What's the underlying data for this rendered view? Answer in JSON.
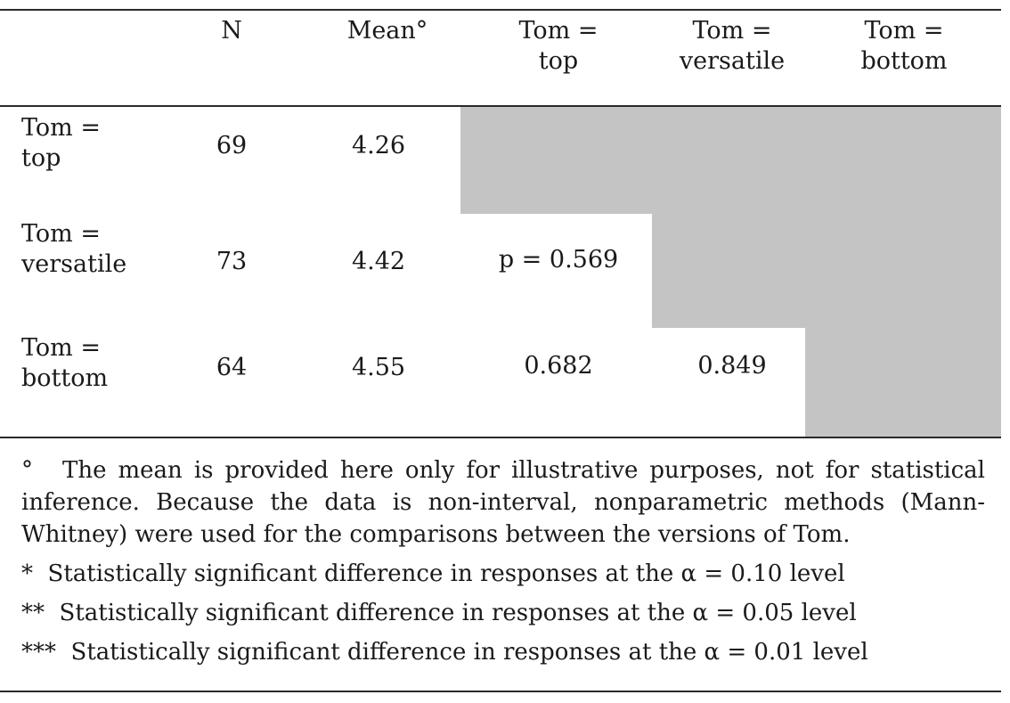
{
  "table": {
    "headers": {
      "n": "N",
      "mean": "Mean°",
      "col1": [
        "Tom =",
        "top"
      ],
      "col2": [
        "Tom =",
        "versatile"
      ],
      "col3": [
        "Tom =",
        "bottom"
      ]
    },
    "rows": [
      {
        "label": [
          "Tom =",
          "top"
        ],
        "n": "69",
        "mean": "4.26",
        "vs_top": "",
        "vs_versatile": ""
      },
      {
        "label": [
          "Tom =",
          "versatile"
        ],
        "n": "73",
        "mean": "4.42",
        "vs_top": "p = 0.569",
        "vs_versatile": ""
      },
      {
        "label": [
          "Tom =",
          "bottom"
        ],
        "n": "64",
        "mean": "4.55",
        "vs_top": "0.682",
        "vs_versatile": "0.849"
      }
    ],
    "shade_color": "#c4c4c4"
  },
  "notes": {
    "degree_mark": "°",
    "degree_note": "The mean is provided here only for illustrative purposes, not for statistical inference. Because the data is non-interval, nonparametric methods (Mann-Whitney) were used for the comparisons between the versions of Tom.",
    "sig": [
      {
        "mark": "*",
        "text": "Statistically significant difference in responses at the α = 0.10 level"
      },
      {
        "mark": "**",
        "text": "Statistically significant difference in responses at the α = 0.05 level"
      },
      {
        "mark": "***",
        "text": "Statistically significant difference in responses at the α = 0.01 level"
      }
    ]
  }
}
